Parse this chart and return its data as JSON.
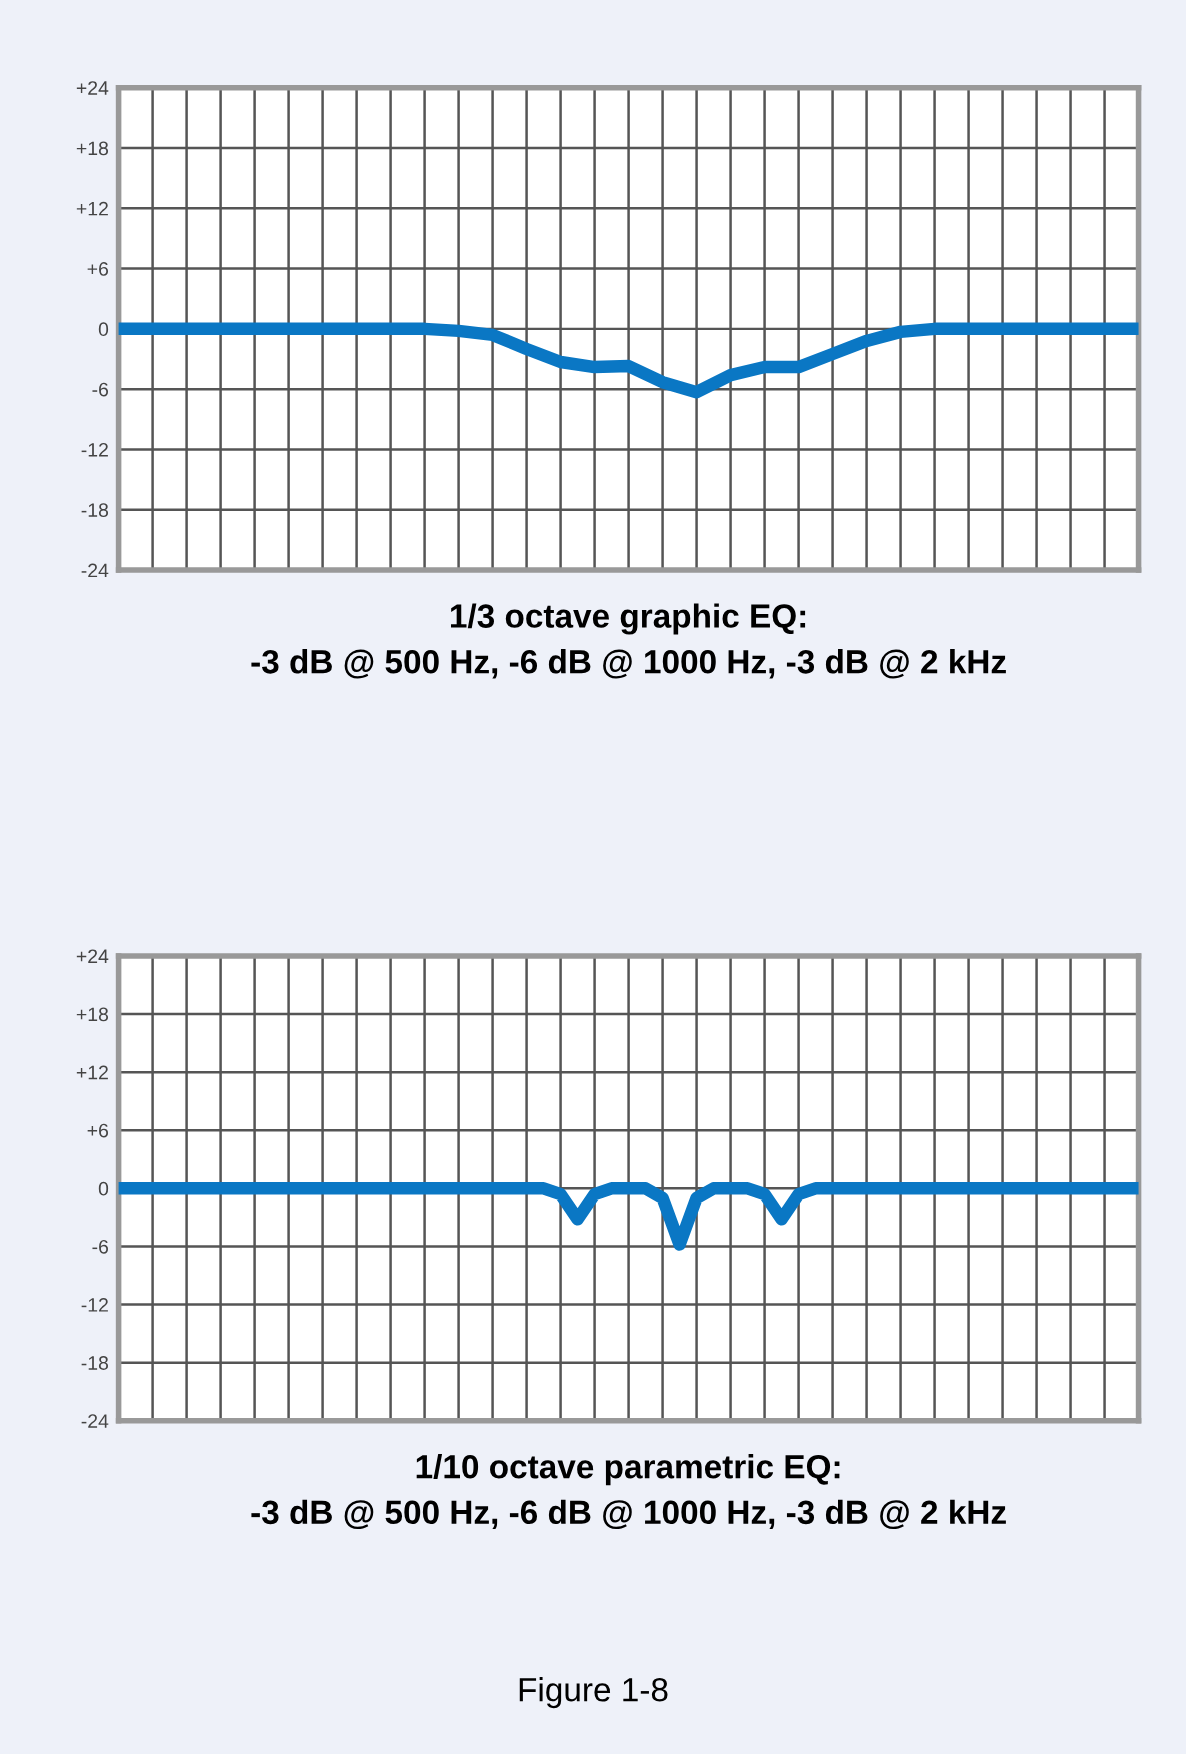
{
  "chart_data": [
    {
      "type": "line",
      "xlabel": "1/3 octave graphic EQ:\n-3 dB @ 500 Hz, -6 dB @ 1000 Hz, -3 dB @ 2 kHz",
      "categories": [
        null,
        null,
        null,
        null,
        null,
        null,
        null,
        null,
        null,
        null,
        null,
        null,
        null,
        null,
        null,
        null,
        null,
        null,
        null,
        null,
        null,
        null,
        null,
        null,
        null,
        null,
        null,
        null,
        null,
        null,
        null
      ],
      "ylim": [
        -24,
        24
      ],
      "yticks": [
        {
          "value": 24,
          "label": "+24"
        },
        {
          "value": 18,
          "label": "+18"
        },
        {
          "value": 12,
          "label": "+12"
        },
        {
          "value": 6,
          "label": "+6"
        },
        0,
        -6,
        -12,
        -18,
        -24
      ],
      "grid": true,
      "tick_labels": "y",
      "series": [
        {
          "color": "#0a77c4",
          "values": [
            0,
            0,
            0,
            0,
            0,
            0,
            0,
            0,
            0,
            0,
            -0.2,
            -0.6,
            -2.0,
            -3.3,
            -3.8,
            -3.7,
            -5.3,
            -6.3,
            -4.6,
            -3.8,
            -3.8,
            -2.5,
            -1.2,
            -0.3,
            0,
            0,
            0,
            0,
            0,
            0,
            0
          ]
        }
      ]
    },
    {
      "type": "line",
      "xlabel": "1/10 octave parametric EQ:\n-3 dB @ 500 Hz, -6 dB @ 1000 Hz, -3 dB @ 2 kHz",
      "annotations": [
        "Figure 1-8"
      ],
      "categories": [
        null,
        null,
        null,
        null,
        null,
        null,
        null,
        null,
        null,
        null,
        null,
        null,
        null,
        null,
        null,
        null,
        null,
        null,
        null,
        null,
        null,
        null,
        null,
        null,
        null,
        null,
        null,
        null,
        null,
        null,
        null,
        null,
        null,
        null,
        null,
        null,
        null,
        null,
        null,
        null,
        null,
        null,
        null,
        null,
        null,
        null,
        null,
        null,
        null,
        null,
        null,
        null,
        null,
        null,
        null,
        null,
        null,
        null,
        null,
        null,
        null
      ],
      "ylim": [
        -24,
        24
      ],
      "yticks": [
        {
          "value": 24,
          "label": "+24"
        },
        {
          "value": 18,
          "label": "+18"
        },
        {
          "value": 12,
          "label": "+12"
        },
        {
          "value": 6,
          "label": "+6"
        },
        0,
        -6,
        -12,
        -18,
        -24
      ],
      "grid": true,
      "tick_labels": "y",
      "series": [
        {
          "color": "#0a77c4",
          "values": [
            0,
            0,
            0,
            0,
            0,
            0,
            0,
            0,
            0,
            0,
            0,
            0,
            0,
            0,
            0,
            0,
            0,
            0,
            0,
            0,
            0,
            0,
            0,
            0,
            0,
            0,
            -0.6,
            -3.2,
            -0.6,
            0,
            0,
            0,
            -1.0,
            -5.8,
            -1.0,
            0,
            0,
            0,
            -0.6,
            -3.2,
            -0.6,
            0,
            0,
            0,
            0,
            0,
            0,
            0,
            0,
            0,
            0,
            0,
            0,
            0,
            0,
            0,
            0,
            0,
            0,
            0,
            0
          ]
        }
      ]
    }
  ]
}
